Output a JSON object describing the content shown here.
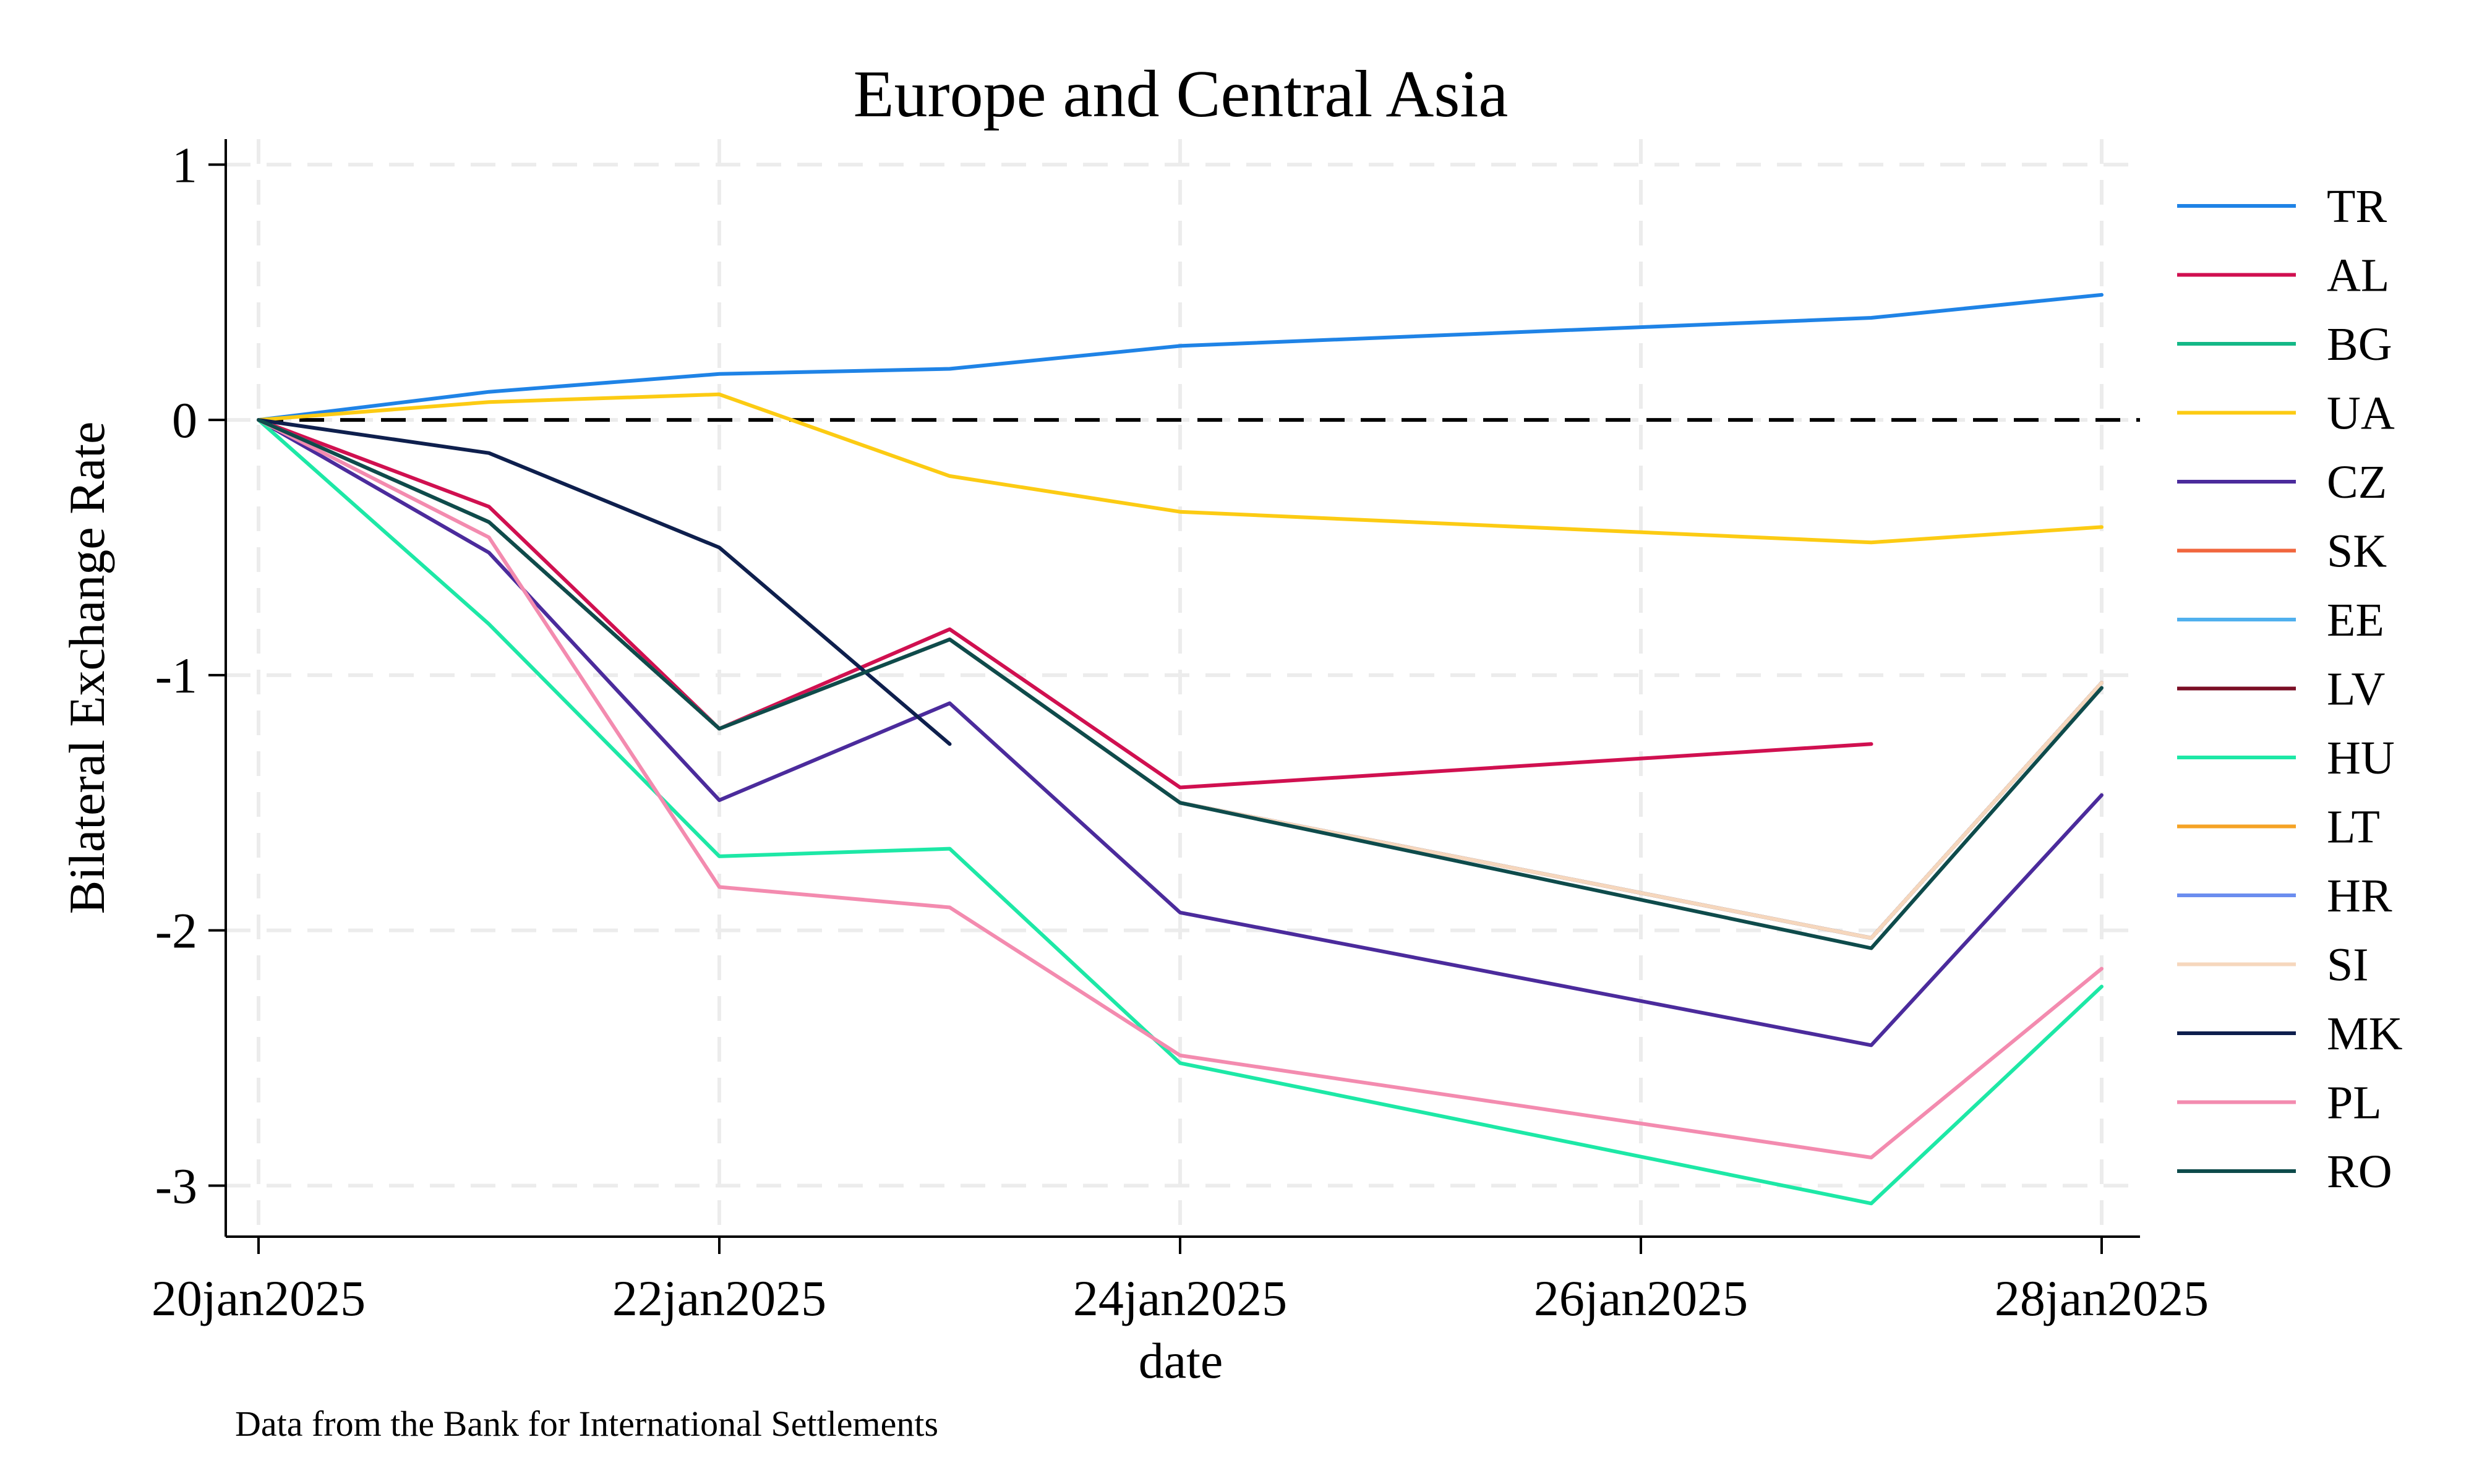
{
  "chart_data": {
    "type": "line",
    "title": "Europe and Central Asia",
    "xlabel": "date",
    "ylabel": "Bilateral Exchange Rate",
    "note": "Data from the Bank for International Settlements",
    "x": [
      "2025-01-20",
      "2025-01-21",
      "2025-01-22",
      "2025-01-23",
      "2025-01-24",
      "2025-01-27",
      "2025-01-28"
    ],
    "xlim": [
      "2025-01-20",
      "2025-01-28"
    ],
    "x_ticks": [
      {
        "date": "2025-01-20",
        "label": "20jan2025"
      },
      {
        "date": "2025-01-22",
        "label": "22jan2025"
      },
      {
        "date": "2025-01-24",
        "label": "24jan2025"
      },
      {
        "date": "2025-01-26",
        "label": "26jan2025"
      },
      {
        "date": "2025-01-28",
        "label": "28jan2025"
      }
    ],
    "ylim": [
      -3.2,
      1.1
    ],
    "y_ticks": [
      {
        "value": 1,
        "label": "1"
      },
      {
        "value": 0,
        "label": "0"
      },
      {
        "value": -1,
        "label": "-1"
      },
      {
        "value": -2,
        "label": "-2"
      },
      {
        "value": -3,
        "label": "-3"
      }
    ],
    "reference_line": {
      "y": 0,
      "style": "dashed",
      "color": "#000000"
    },
    "grid": true,
    "legend_position": "right",
    "series": [
      {
        "name": "TR",
        "color": "#1f83e6",
        "values": [
          0,
          0.11,
          0.18,
          0.2,
          0.29,
          0.4,
          0.49
        ]
      },
      {
        "name": "AL",
        "color": "#d01050",
        "values": [
          0,
          -0.34,
          -1.21,
          -0.82,
          -1.44,
          -1.27,
          null
        ]
      },
      {
        "name": "BG",
        "color": "#14b887",
        "values": [
          0,
          -0.4,
          -1.21,
          -0.86,
          -1.5,
          -2.03,
          -1.03
        ]
      },
      {
        "name": "UA",
        "color": "#fccb13",
        "values": [
          0,
          0.07,
          0.1,
          -0.22,
          -0.36,
          -0.48,
          -0.42
        ]
      },
      {
        "name": "CZ",
        "color": "#4b2b9c",
        "values": [
          0,
          -0.52,
          -1.49,
          -1.11,
          -1.93,
          -2.45,
          -1.47
        ]
      },
      {
        "name": "SK",
        "color": "#f1663e",
        "values": [
          0,
          -0.4,
          -1.21,
          -0.86,
          -1.5,
          -2.03,
          -1.03
        ]
      },
      {
        "name": "EE",
        "color": "#50b0ee",
        "values": [
          0,
          -0.4,
          -1.21,
          -0.86,
          -1.5,
          -2.03,
          -1.03
        ]
      },
      {
        "name": "LV",
        "color": "#7a0e25",
        "values": [
          0,
          -0.4,
          -1.21,
          -0.86,
          -1.5,
          -2.03,
          -1.03
        ]
      },
      {
        "name": "HU",
        "color": "#1de8a6",
        "values": [
          0,
          -0.8,
          -1.71,
          -1.68,
          -2.52,
          -3.07,
          -2.22
        ]
      },
      {
        "name": "LT",
        "color": "#f5a325",
        "values": [
          0,
          -0.4,
          -1.21,
          -0.86,
          -1.5,
          -2.03,
          -1.03
        ]
      },
      {
        "name": "HR",
        "color": "#6b8def",
        "values": [
          0,
          -0.4,
          -1.21,
          -0.86,
          -1.5,
          -2.03,
          -1.03
        ]
      },
      {
        "name": "SI",
        "color": "#f6d7bd",
        "values": [
          0,
          -0.4,
          -1.21,
          -0.86,
          -1.5,
          -2.03,
          -1.03
        ]
      },
      {
        "name": "MK",
        "color": "#0e1f4d",
        "values": [
          0,
          -0.13,
          -0.5,
          -1.27,
          null,
          null,
          null
        ]
      },
      {
        "name": "PL",
        "color": "#f38baf",
        "values": [
          0,
          -0.46,
          -1.83,
          -1.91,
          -2.49,
          -2.89,
          -2.15
        ]
      },
      {
        "name": "RO",
        "color": "#0e4b4b",
        "values": [
          0,
          -0.4,
          -1.21,
          -0.86,
          -1.5,
          -2.07,
          -1.05
        ]
      }
    ]
  }
}
